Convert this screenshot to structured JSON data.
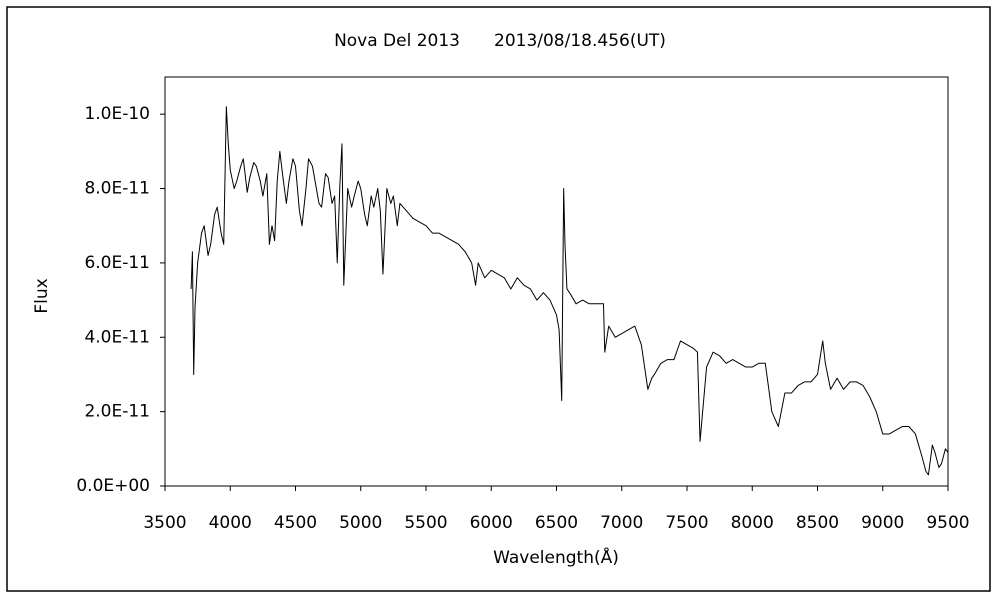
{
  "chart_data": {
    "type": "line",
    "title": "Nova Del 2013　　2013/08/18.456(UT)",
    "x_label": "Wavelength(Å)",
    "y_label": "Flux",
    "color": "#000000",
    "grid": false,
    "x": [
      3700,
      3710,
      3720,
      3730,
      3750,
      3780,
      3800,
      3830,
      3850,
      3880,
      3900,
      3930,
      3950,
      3970,
      3985,
      4000,
      4030,
      4050,
      4080,
      4100,
      4130,
      4150,
      4180,
      4200,
      4230,
      4250,
      4280,
      4300,
      4320,
      4340,
      4360,
      4380,
      4400,
      4430,
      4450,
      4480,
      4500,
      4530,
      4550,
      4580,
      4600,
      4630,
      4650,
      4680,
      4700,
      4730,
      4750,
      4780,
      4800,
      4820,
      4840,
      4856,
      4870,
      4900,
      4930,
      4950,
      4980,
      5000,
      5030,
      5050,
      5080,
      5100,
      5130,
      5150,
      5170,
      5200,
      5230,
      5250,
      5280,
      5300,
      5350,
      5400,
      5450,
      5500,
      5550,
      5600,
      5650,
      5700,
      5750,
      5800,
      5850,
      5880,
      5900,
      5950,
      6000,
      6050,
      6100,
      6150,
      6200,
      6250,
      6300,
      6350,
      6400,
      6450,
      6500,
      6520,
      6540,
      6555,
      6565,
      6580,
      6600,
      6650,
      6700,
      6750,
      6800,
      6860,
      6870,
      6900,
      6950,
      7000,
      7050,
      7100,
      7150,
      7200,
      7230,
      7250,
      7300,
      7350,
      7400,
      7450,
      7500,
      7550,
      7580,
      7600,
      7620,
      7650,
      7700,
      7750,
      7800,
      7850,
      7900,
      7950,
      8000,
      8050,
      8100,
      8150,
      8200,
      8250,
      8300,
      8350,
      8400,
      8450,
      8500,
      8540,
      8560,
      8600,
      8650,
      8700,
      8750,
      8800,
      8850,
      8900,
      8950,
      9000,
      9050,
      9100,
      9150,
      9200,
      9250,
      9300,
      9330,
      9350,
      9380,
      9400,
      9430,
      9450,
      9480,
      9500
    ],
    "values": [
      5.3e-11,
      6.3e-11,
      3e-11,
      4.8e-11,
      6e-11,
      6.8e-11,
      7e-11,
      6.2e-11,
      6.5e-11,
      7.3e-11,
      7.5e-11,
      6.8e-11,
      6.5e-11,
      1.02e-10,
      9.2e-11,
      8.5e-11,
      8e-11,
      8.2e-11,
      8.6e-11,
      8.8e-11,
      7.9e-11,
      8.3e-11,
      8.7e-11,
      8.6e-11,
      8.2e-11,
      7.8e-11,
      8.4e-11,
      6.5e-11,
      7e-11,
      6.6e-11,
      8.2e-11,
      9e-11,
      8.4e-11,
      7.6e-11,
      8.2e-11,
      8.8e-11,
      8.6e-11,
      7.4e-11,
      7e-11,
      8e-11,
      8.8e-11,
      8.6e-11,
      8.2e-11,
      7.6e-11,
      7.5e-11,
      8.4e-11,
      8.3e-11,
      7.6e-11,
      7.8e-11,
      6e-11,
      8.1e-11,
      9.2e-11,
      5.4e-11,
      8e-11,
      7.5e-11,
      7.8e-11,
      8.2e-11,
      8e-11,
      7.3e-11,
      7e-11,
      7.8e-11,
      7.5e-11,
      8e-11,
      7.4e-11,
      5.7e-11,
      8e-11,
      7.6e-11,
      7.8e-11,
      7e-11,
      7.6e-11,
      7.4e-11,
      7.2e-11,
      7.1e-11,
      7e-11,
      6.8e-11,
      6.8e-11,
      6.7e-11,
      6.6e-11,
      6.5e-11,
      6.3e-11,
      6e-11,
      5.4e-11,
      6e-11,
      5.6e-11,
      5.8e-11,
      5.7e-11,
      5.6e-11,
      5.3e-11,
      5.6e-11,
      5.4e-11,
      5.3e-11,
      5e-11,
      5.2e-11,
      5e-11,
      4.6e-11,
      4.2e-11,
      2.3e-11,
      8e-11,
      6.5e-11,
      5.3e-11,
      5.2e-11,
      4.9e-11,
      5e-11,
      4.9e-11,
      4.9e-11,
      4.9e-11,
      3.6e-11,
      4.3e-11,
      4e-11,
      4.1e-11,
      4.2e-11,
      4.3e-11,
      3.8e-11,
      2.6e-11,
      2.9e-11,
      3e-11,
      3.3e-11,
      3.4e-11,
      3.4e-11,
      3.9e-11,
      3.8e-11,
      3.7e-11,
      3.6e-11,
      1.2e-11,
      2e-11,
      3.2e-11,
      3.6e-11,
      3.5e-11,
      3.3e-11,
      3.4e-11,
      3.3e-11,
      3.2e-11,
      3.2e-11,
      3.3e-11,
      3.3e-11,
      2e-11,
      1.6e-11,
      2.5e-11,
      2.5e-11,
      2.7e-11,
      2.8e-11,
      2.8e-11,
      3e-11,
      3.9e-11,
      3.3e-11,
      2.6e-11,
      2.9e-11,
      2.6e-11,
      2.8e-11,
      2.8e-11,
      2.7e-11,
      2.4e-11,
      2e-11,
      1.4e-11,
      1.4e-11,
      1.5e-11,
      1.6e-11,
      1.6e-11,
      1.4e-11,
      8e-12,
      4e-12,
      3e-12,
      1.1e-11,
      9e-12,
      5e-12,
      6e-12,
      1e-11,
      9e-12
    ],
    "xlim": [
      3500,
      9500
    ],
    "xticks": [
      3500,
      4000,
      4500,
      5000,
      5500,
      6000,
      6500,
      7000,
      7500,
      8000,
      8500,
      9000,
      9500
    ],
    "ylim": [
      0,
      1.1e-10
    ],
    "yticks": [
      {
        "value": 0,
        "label": "0.0E+00"
      },
      {
        "value": 2e-11,
        "label": "2.0E-11"
      },
      {
        "value": 4e-11,
        "label": "4.0E-11"
      },
      {
        "value": 6e-11,
        "label": "6.0E-11"
      },
      {
        "value": 8e-11,
        "label": "8.0E-11"
      },
      {
        "value": 1e-10,
        "label": "1.0E-10"
      }
    ]
  }
}
